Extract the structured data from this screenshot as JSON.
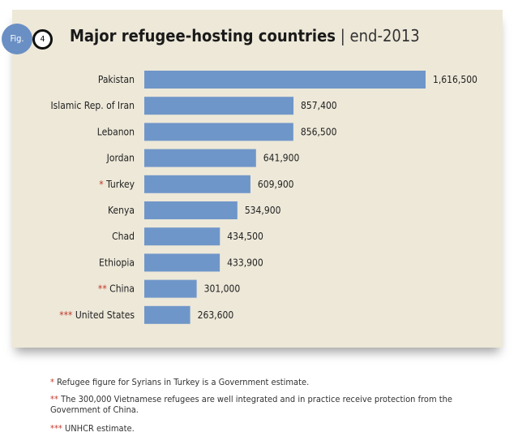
{
  "figure": {
    "badge": "Fig.",
    "number": "4"
  },
  "chart_data": {
    "type": "bar",
    "orientation": "horizontal",
    "title": "Major refugee-hosting countries",
    "subtitle": "end-2013",
    "categories": [
      "Pakistan",
      "Islamic Rep. of Iran",
      "Lebanon",
      "Jordan",
      "Turkey",
      "Kenya",
      "Chad",
      "Ethiopia",
      "China",
      "United States"
    ],
    "markers": [
      "",
      "",
      "",
      "",
      "*",
      "",
      "",
      "",
      "**",
      "***"
    ],
    "values": [
      1616500,
      857400,
      856500,
      641900,
      609900,
      534900,
      434500,
      433900,
      301000,
      263600
    ],
    "value_labels": [
      "1,616,500",
      "857,400",
      "856,500",
      "641,900",
      "609,900",
      "534,900",
      "434,500",
      "433,900",
      "301,000",
      "263,600"
    ],
    "bar_color": "#6f96c9",
    "background_color": "#ede8d8",
    "marker_color": "#c0392b",
    "grid": false
  },
  "footnotes": [
    {
      "marker": "*",
      "text": "Refugee figure for Syrians in Turkey is a Government estimate."
    },
    {
      "marker": "**",
      "text": "The 300,000 Vietnamese refugees are well integrated and in practice receive protection from the Government of China."
    },
    {
      "marker": "***",
      "text": "UNHCR estimate."
    }
  ]
}
